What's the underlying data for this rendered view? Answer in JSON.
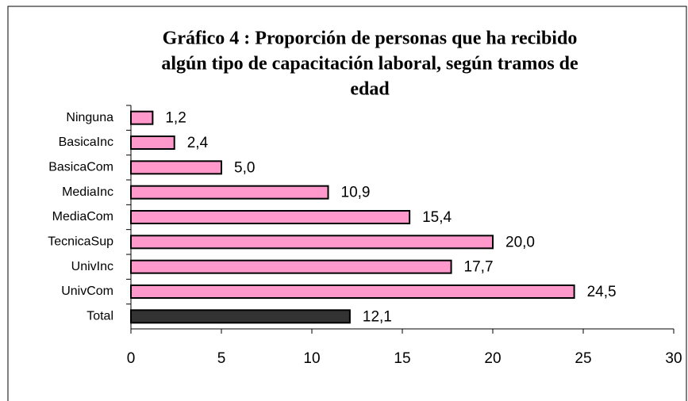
{
  "chart_data": {
    "type": "bar",
    "orientation": "horizontal",
    "title": [
      "Gráfico 4 : Proporción de personas que ha recibido",
      "algún tipo de capacitación laboral, según tramos de",
      "edad"
    ],
    "categories": [
      "Ninguna",
      "BasicaInc",
      "BasicaCom",
      "MediaInc",
      "MediaCom",
      "TecnicaSup",
      "UnivInc",
      "UnivCom",
      "Total"
    ],
    "values": [
      1.2,
      2.4,
      5.0,
      10.9,
      15.4,
      20.0,
      17.7,
      24.5,
      12.1
    ],
    "value_labels": [
      "1,2",
      "2,4",
      "5,0",
      "10,9",
      "15,4",
      "20,0",
      "17,7",
      "24,5",
      "12,1"
    ],
    "colors": [
      "#ff99cc",
      "#ff99cc",
      "#ff99cc",
      "#ff99cc",
      "#ff99cc",
      "#ff99cc",
      "#ff99cc",
      "#ff99cc",
      "#333333"
    ],
    "xlim": [
      0,
      30
    ],
    "xticks": [
      0,
      5,
      10,
      15,
      20,
      25,
      30
    ],
    "grid": false
  }
}
